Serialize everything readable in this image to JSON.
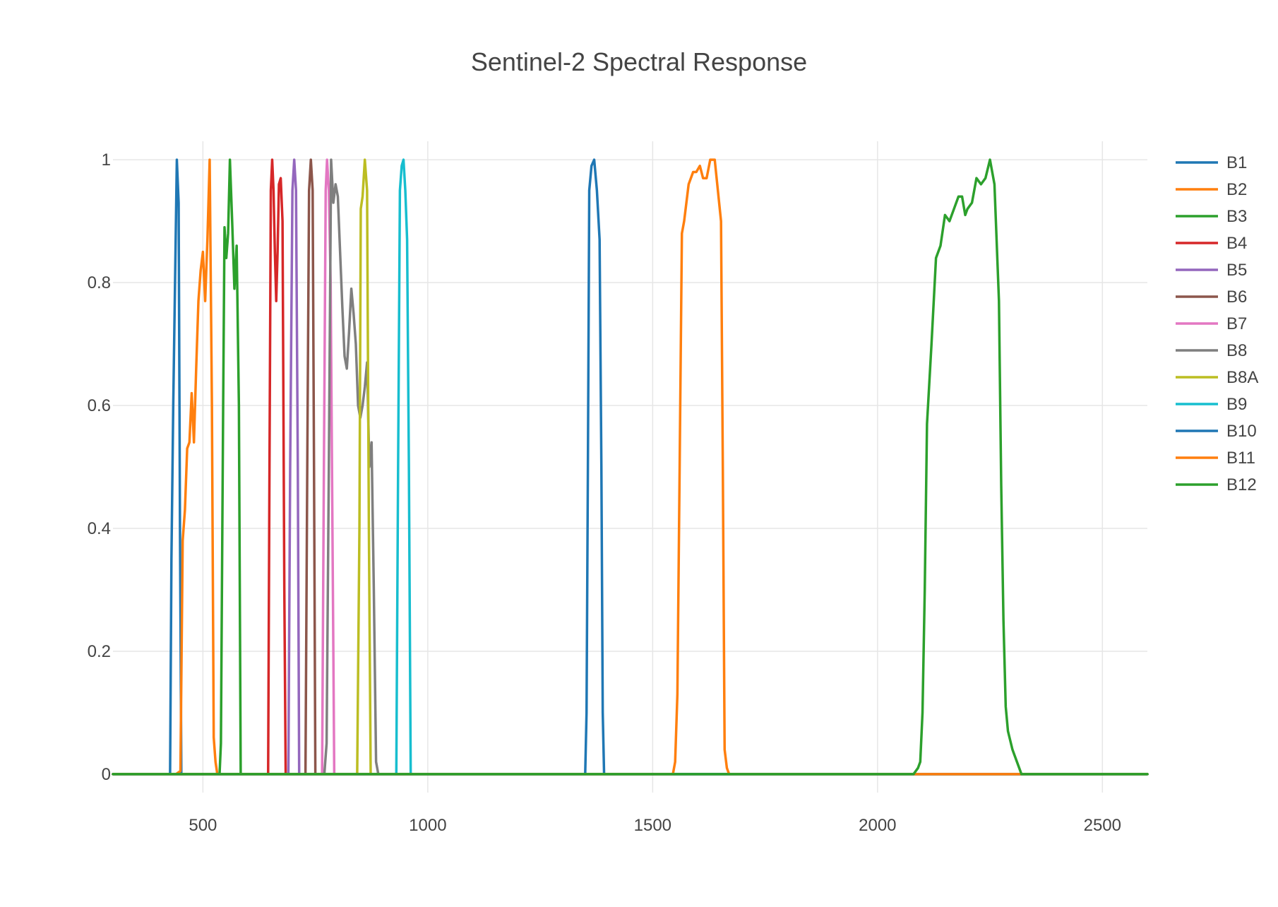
{
  "chart_data": {
    "type": "line",
    "title": "Sentinel-2 Spectral Response",
    "xlabel": "",
    "ylabel": "",
    "xlim": [
      300,
      2600
    ],
    "ylim": [
      -0.03,
      1.03
    ],
    "xticks": [
      500,
      1000,
      1500,
      2000,
      2500
    ],
    "xtick_labels": [
      "500",
      "1000",
      "1500",
      "2000",
      "2500"
    ],
    "yticks": [
      0,
      0.2,
      0.4,
      0.6,
      0.8,
      1
    ],
    "ytick_labels": [
      "0",
      "0.2",
      "0.4",
      "0.6",
      "0.8",
      "1"
    ],
    "grid": true,
    "legend_position": "right",
    "series": [
      {
        "name": "B1",
        "color": "#1f77b4",
        "points": [
          [
            300,
            0
          ],
          [
            427,
            0
          ],
          [
            430,
            0.35
          ],
          [
            434,
            0.6
          ],
          [
            438,
            0.8
          ],
          [
            442,
            1.0
          ],
          [
            446,
            0.93
          ],
          [
            449,
            0.4
          ],
          [
            452,
            0
          ],
          [
            2600,
            0
          ]
        ]
      },
      {
        "name": "B2",
        "color": "#ff7f0e",
        "points": [
          [
            300,
            0
          ],
          [
            440,
            0
          ],
          [
            450,
            0.005
          ],
          [
            455,
            0.38
          ],
          [
            460,
            0.43
          ],
          [
            465,
            0.53
          ],
          [
            470,
            0.54
          ],
          [
            475,
            0.62
          ],
          [
            480,
            0.54
          ],
          [
            485,
            0.66
          ],
          [
            490,
            0.77
          ],
          [
            495,
            0.82
          ],
          [
            500,
            0.85
          ],
          [
            505,
            0.77
          ],
          [
            510,
            0.87
          ],
          [
            515,
            1.0
          ],
          [
            520,
            0.6
          ],
          [
            524,
            0.06
          ],
          [
            528,
            0.02
          ],
          [
            532,
            0
          ],
          [
            2600,
            0
          ]
        ]
      },
      {
        "name": "B3",
        "color": "#2ca02c",
        "points": [
          [
            300,
            0
          ],
          [
            537,
            0
          ],
          [
            540,
            0.05
          ],
          [
            545,
            0.6
          ],
          [
            548,
            0.89
          ],
          [
            552,
            0.84
          ],
          [
            556,
            0.88
          ],
          [
            560,
            1.0
          ],
          [
            565,
            0.9
          ],
          [
            570,
            0.79
          ],
          [
            575,
            0.86
          ],
          [
            580,
            0.6
          ],
          [
            584,
            0
          ],
          [
            2600,
            0
          ]
        ]
      },
      {
        "name": "B4",
        "color": "#d62728",
        "points": [
          [
            300,
            0
          ],
          [
            645,
            0
          ],
          [
            648,
            0.5
          ],
          [
            651,
            0.95
          ],
          [
            654,
            1.0
          ],
          [
            657,
            0.95
          ],
          [
            660,
            0.85
          ],
          [
            663,
            0.77
          ],
          [
            666,
            0.85
          ],
          [
            669,
            0.96
          ],
          [
            673,
            0.97
          ],
          [
            677,
            0.9
          ],
          [
            681,
            0.3
          ],
          [
            684,
            0
          ],
          [
            2600,
            0
          ]
        ]
      },
      {
        "name": "B5",
        "color": "#9467bd",
        "points": [
          [
            300,
            0
          ],
          [
            690,
            0
          ],
          [
            694,
            0.5
          ],
          [
            699,
            0.95
          ],
          [
            703,
            1.0
          ],
          [
            707,
            0.95
          ],
          [
            711,
            0.5
          ],
          [
            714,
            0
          ],
          [
            2600,
            0
          ]
        ]
      },
      {
        "name": "B6",
        "color": "#8c564b",
        "points": [
          [
            300,
            0
          ],
          [
            728,
            0
          ],
          [
            732,
            0.5
          ],
          [
            736,
            0.95
          ],
          [
            740,
            1.0
          ],
          [
            744,
            0.95
          ],
          [
            747,
            0.5
          ],
          [
            750,
            0
          ],
          [
            2600,
            0
          ]
        ]
      },
      {
        "name": "B7",
        "color": "#e377c2",
        "points": [
          [
            300,
            0
          ],
          [
            765,
            0
          ],
          [
            769,
            0.5
          ],
          [
            773,
            0.95
          ],
          [
            776,
            1.0
          ],
          [
            780,
            0.95
          ],
          [
            784,
            0.8
          ],
          [
            788,
            0.4
          ],
          [
            792,
            0
          ],
          [
            2600,
            0
          ]
        ]
      },
      {
        "name": "B8",
        "color": "#7f7f7f",
        "points": [
          [
            300,
            0
          ],
          [
            770,
            0
          ],
          [
            775,
            0.05
          ],
          [
            780,
            0.5
          ],
          [
            785,
            1.0
          ],
          [
            790,
            0.93
          ],
          [
            795,
            0.96
          ],
          [
            800,
            0.94
          ],
          [
            805,
            0.85
          ],
          [
            810,
            0.76
          ],
          [
            815,
            0.68
          ],
          [
            820,
            0.66
          ],
          [
            825,
            0.72
          ],
          [
            830,
            0.79
          ],
          [
            835,
            0.75
          ],
          [
            840,
            0.7
          ],
          [
            845,
            0.6
          ],
          [
            850,
            0.58
          ],
          [
            855,
            0.6
          ],
          [
            860,
            0.63
          ],
          [
            865,
            0.67
          ],
          [
            870,
            0.5
          ],
          [
            875,
            0.54
          ],
          [
            880,
            0.3
          ],
          [
            885,
            0.02
          ],
          [
            890,
            0
          ],
          [
            2600,
            0
          ]
        ]
      },
      {
        "name": "B8A",
        "color": "#bcbd22",
        "points": [
          [
            300,
            0
          ],
          [
            843,
            0
          ],
          [
            848,
            0.4
          ],
          [
            851,
            0.92
          ],
          [
            855,
            0.94
          ],
          [
            860,
            1.0
          ],
          [
            865,
            0.95
          ],
          [
            869,
            0.4
          ],
          [
            873,
            0
          ],
          [
            2600,
            0
          ]
        ]
      },
      {
        "name": "B9",
        "color": "#17becf",
        "points": [
          [
            300,
            0
          ],
          [
            930,
            0
          ],
          [
            934,
            0.5
          ],
          [
            938,
            0.95
          ],
          [
            942,
            0.99
          ],
          [
            946,
            1.0
          ],
          [
            950,
            0.95
          ],
          [
            954,
            0.87
          ],
          [
            958,
            0.5
          ],
          [
            962,
            0
          ],
          [
            2600,
            0
          ]
        ]
      },
      {
        "name": "B10",
        "color": "#1f77b4",
        "points": [
          [
            300,
            0
          ],
          [
            1350,
            0
          ],
          [
            1353,
            0.1
          ],
          [
            1356,
            0.5
          ],
          [
            1359,
            0.95
          ],
          [
            1364,
            0.99
          ],
          [
            1370,
            1.0
          ],
          [
            1376,
            0.95
          ],
          [
            1382,
            0.87
          ],
          [
            1386,
            0.5
          ],
          [
            1389,
            0.1
          ],
          [
            1392,
            0
          ],
          [
            2600,
            0
          ]
        ]
      },
      {
        "name": "B11",
        "color": "#ff7f0e",
        "points": [
          [
            300,
            0
          ],
          [
            1545,
            0
          ],
          [
            1550,
            0.02
          ],
          [
            1555,
            0.13
          ],
          [
            1560,
            0.5
          ],
          [
            1565,
            0.88
          ],
          [
            1570,
            0.9
          ],
          [
            1580,
            0.96
          ],
          [
            1590,
            0.98
          ],
          [
            1597,
            0.98
          ],
          [
            1605,
            0.99
          ],
          [
            1612,
            0.97
          ],
          [
            1620,
            0.97
          ],
          [
            1628,
            1.0
          ],
          [
            1638,
            1.0
          ],
          [
            1645,
            0.95
          ],
          [
            1652,
            0.9
          ],
          [
            1656,
            0.5
          ],
          [
            1660,
            0.04
          ],
          [
            1665,
            0.01
          ],
          [
            1670,
            0
          ],
          [
            2600,
            0
          ]
        ]
      },
      {
        "name": "B12",
        "color": "#2ca02c",
        "points": [
          [
            300,
            0
          ],
          [
            2080,
            0
          ],
          [
            2090,
            0.01
          ],
          [
            2095,
            0.02
          ],
          [
            2100,
            0.1
          ],
          [
            2105,
            0.3
          ],
          [
            2110,
            0.57
          ],
          [
            2120,
            0.7
          ],
          [
            2130,
            0.84
          ],
          [
            2140,
            0.86
          ],
          [
            2150,
            0.91
          ],
          [
            2160,
            0.9
          ],
          [
            2170,
            0.92
          ],
          [
            2180,
            0.94
          ],
          [
            2188,
            0.94
          ],
          [
            2195,
            0.91
          ],
          [
            2200,
            0.92
          ],
          [
            2210,
            0.93
          ],
          [
            2220,
            0.97
          ],
          [
            2230,
            0.96
          ],
          [
            2240,
            0.97
          ],
          [
            2250,
            1.0
          ],
          [
            2260,
            0.96
          ],
          [
            2270,
            0.77
          ],
          [
            2275,
            0.47
          ],
          [
            2280,
            0.25
          ],
          [
            2285,
            0.11
          ],
          [
            2290,
            0.07
          ],
          [
            2300,
            0.04
          ],
          [
            2310,
            0.02
          ],
          [
            2320,
            0
          ],
          [
            2600,
            0
          ]
        ]
      }
    ]
  }
}
